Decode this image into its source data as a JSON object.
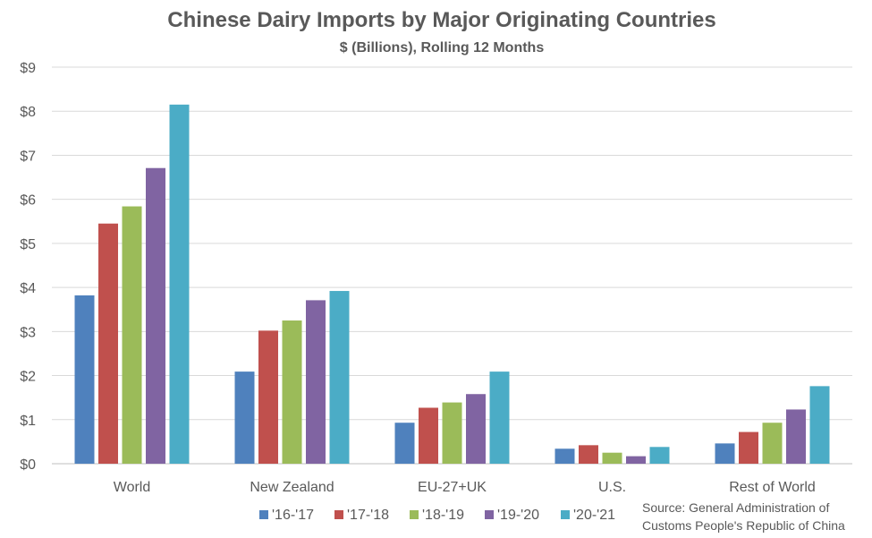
{
  "chart_data": {
    "type": "bar",
    "title": "Chinese Dairy Imports by Major Originating Countries",
    "subtitle": "$ (Billions), Rolling 12 Months",
    "categories": [
      "World",
      "New Zealand",
      "EU-27+UK",
      "U.S.",
      "Rest of World"
    ],
    "series": [
      {
        "name": "'16-'17",
        "color": "#4F81BD",
        "values": [
          3.82,
          2.09,
          0.93,
          0.34,
          0.46
        ]
      },
      {
        "name": "'17-'18",
        "color": "#C0504D",
        "values": [
          5.45,
          3.02,
          1.27,
          0.42,
          0.72
        ]
      },
      {
        "name": "'18-'19",
        "color": "#9BBB59",
        "values": [
          5.84,
          3.25,
          1.39,
          0.25,
          0.93
        ]
      },
      {
        "name": "'19-'20",
        "color": "#8064A2",
        "values": [
          6.71,
          3.71,
          1.58,
          0.17,
          1.23
        ]
      },
      {
        "name": "'20-'21",
        "color": "#4BACC6",
        "values": [
          8.15,
          3.92,
          2.09,
          0.38,
          1.76
        ]
      }
    ],
    "ylim": [
      0,
      9
    ],
    "yticks": [
      "$0",
      "$1",
      "$2",
      "$3",
      "$4",
      "$5",
      "$6",
      "$7",
      "$8",
      "$9"
    ],
    "grid": true,
    "legend": "bottom"
  },
  "source": {
    "line1": "Source: General Administration of",
    "line2": "Customs People's Republic of China"
  }
}
